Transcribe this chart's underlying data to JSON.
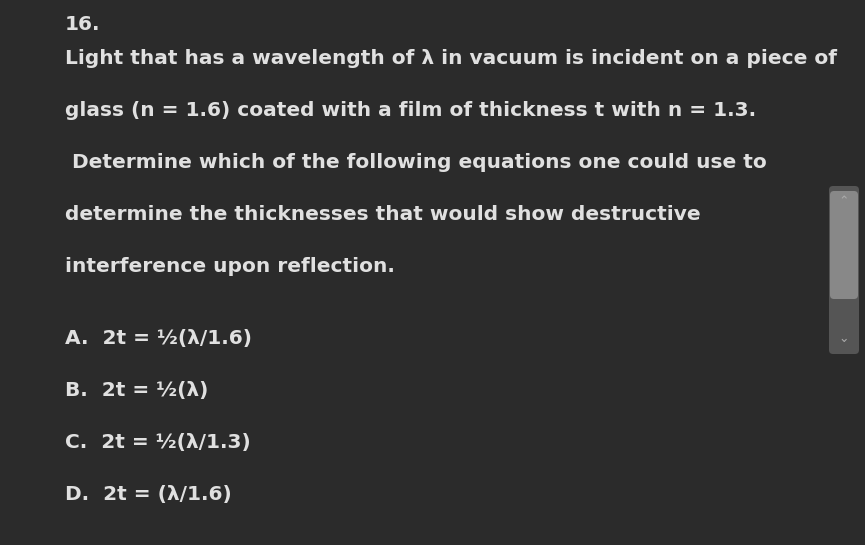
{
  "background_color": "#2b2b2b",
  "text_color": "#e0e0e0",
  "question_number": "16.",
  "body_fontsize": 14.5,
  "question_lines": [
    "Light that has a wavelength of λ in vacuum is incident on a piece of",
    "glass (n = 1.6) coated with a film of thickness t with n = 1.3.",
    " Determine which of the following equations one could use to",
    "determine the thicknesses that would show destructive",
    "interference upon reflection."
  ],
  "options": [
    "A.  2t = ½(λ/1.6)",
    "B.  2t = ½(λ)",
    "C.  2t = ½(λ/1.3)",
    "D.  2t = (λ/1.6)"
  ],
  "scrollbar_track_color": "#555555",
  "scrollbar_thumb_color": "#888888",
  "arrow_color": "#aaaaaa",
  "fig_width": 8.65,
  "fig_height": 5.45,
  "dpi": 100
}
